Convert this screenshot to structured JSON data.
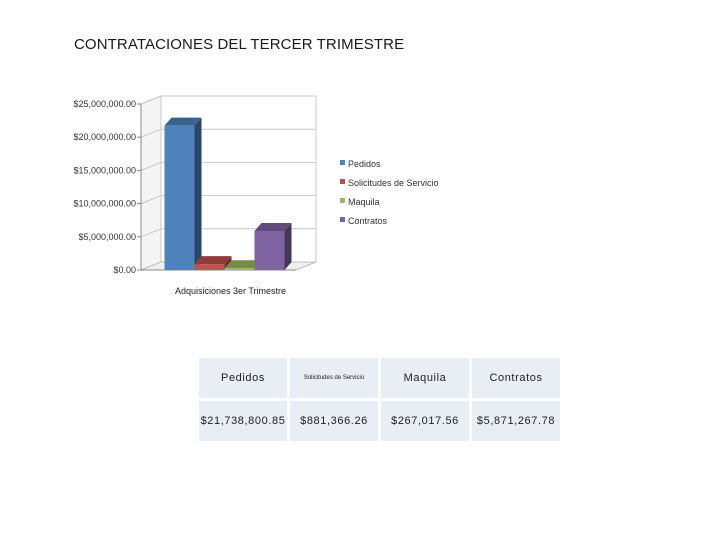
{
  "page": {
    "title": "CONTRATACIONES DEL TERCER TRIMESTRE"
  },
  "chart_data": {
    "type": "bar",
    "style": "3d-clustered-column",
    "categories": [
      "Adquisiciones 3er Trimestre"
    ],
    "series": [
      {
        "name": "Pedidos",
        "values": [
          21738800.85
        ],
        "color": "#4f81bd"
      },
      {
        "name": "Solicitudes de Servicio",
        "values": [
          881366.26
        ],
        "color": "#c0504d"
      },
      {
        "name": "Maquila",
        "values": [
          267017.56
        ],
        "color": "#9bbb59"
      },
      {
        "name": "Contratos",
        "values": [
          5871267.78
        ],
        "color": "#8064a2"
      }
    ],
    "title": "",
    "xlabel": "",
    "ylabel": "",
    "ylim": [
      0,
      25000000
    ],
    "yticks": [
      0,
      5000000,
      10000000,
      15000000,
      20000000,
      25000000
    ],
    "ytick_labels": [
      "$0.00",
      "$5,000,000.00",
      "$10,000,000.00",
      "$15,000,000.00",
      "$20,000,000.00",
      "$25,000,000.00"
    ],
    "grid": true,
    "legend_position": "right"
  },
  "table": {
    "headers": [
      "Pedidos",
      "Solicitudes de Servicio",
      "Maquila",
      "Contratos"
    ],
    "values": [
      "$21,738,800.85",
      "$881,366.26",
      "$267,017.56",
      "$5,871,267.78"
    ]
  }
}
